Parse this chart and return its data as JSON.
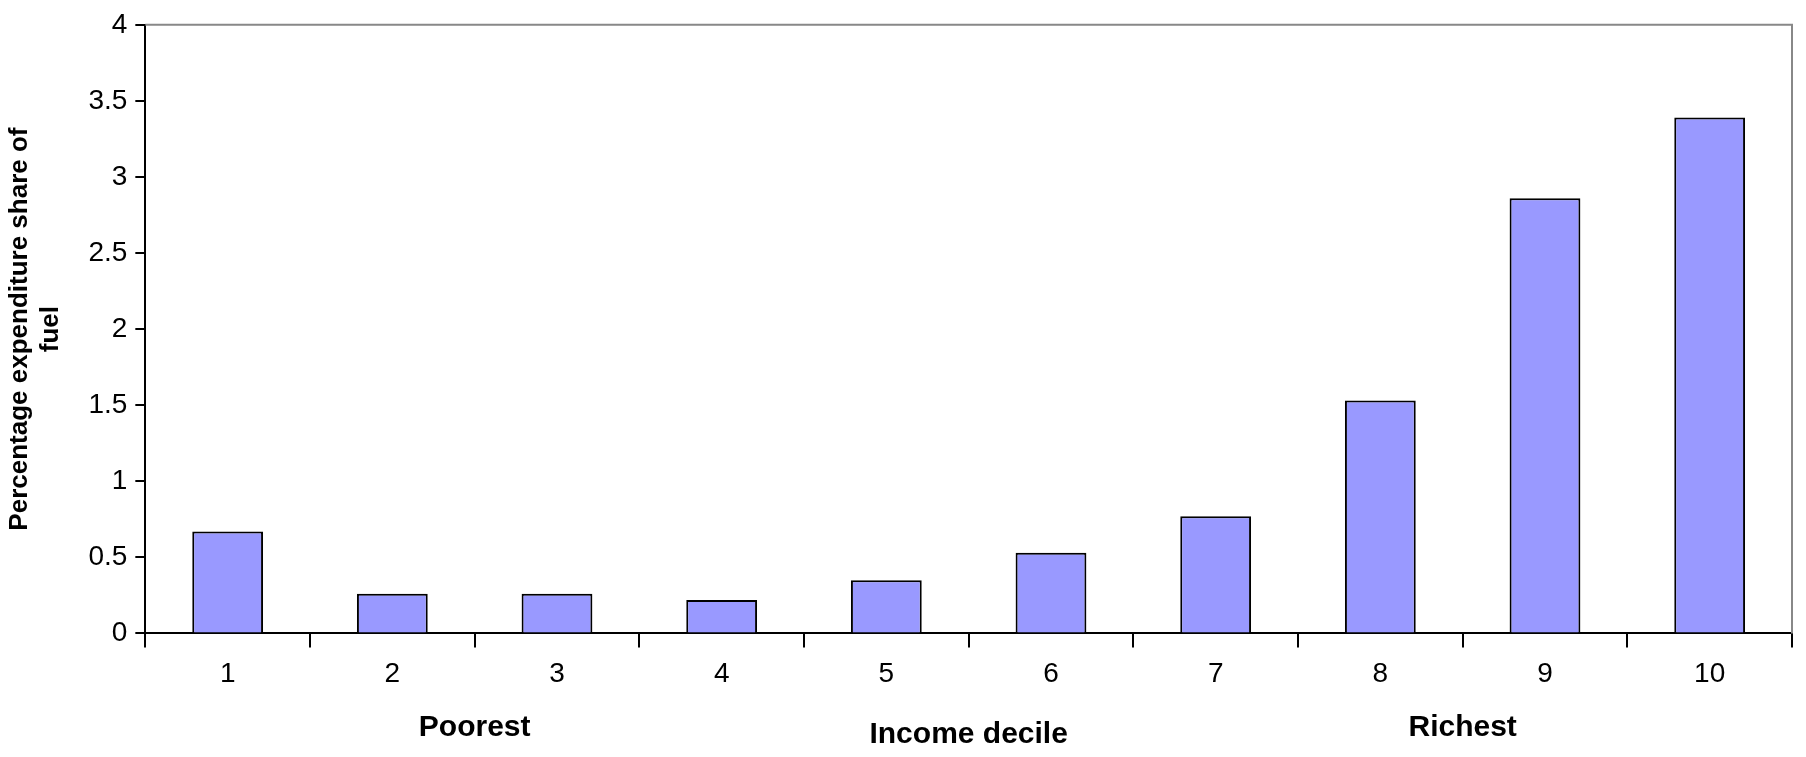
{
  "chart_data": {
    "type": "bar",
    "ylabel": "Percentage expenditure share of fuel",
    "xlabel": "Income decile",
    "annotations": [
      "Poorest",
      "Richest"
    ],
    "categories": [
      "1",
      "2",
      "3",
      "4",
      "5",
      "6",
      "7",
      "8",
      "9",
      "10"
    ],
    "values": [
      0.67,
      0.26,
      0.26,
      0.22,
      0.35,
      0.53,
      0.77,
      1.53,
      2.86,
      3.39
    ],
    "color": "#9999ff",
    "ylim": [
      0,
      4
    ],
    "yticks": [
      0,
      0.5,
      1,
      1.5,
      2,
      2.5,
      3,
      3.5,
      4
    ],
    "grid": false,
    "legend": false
  }
}
